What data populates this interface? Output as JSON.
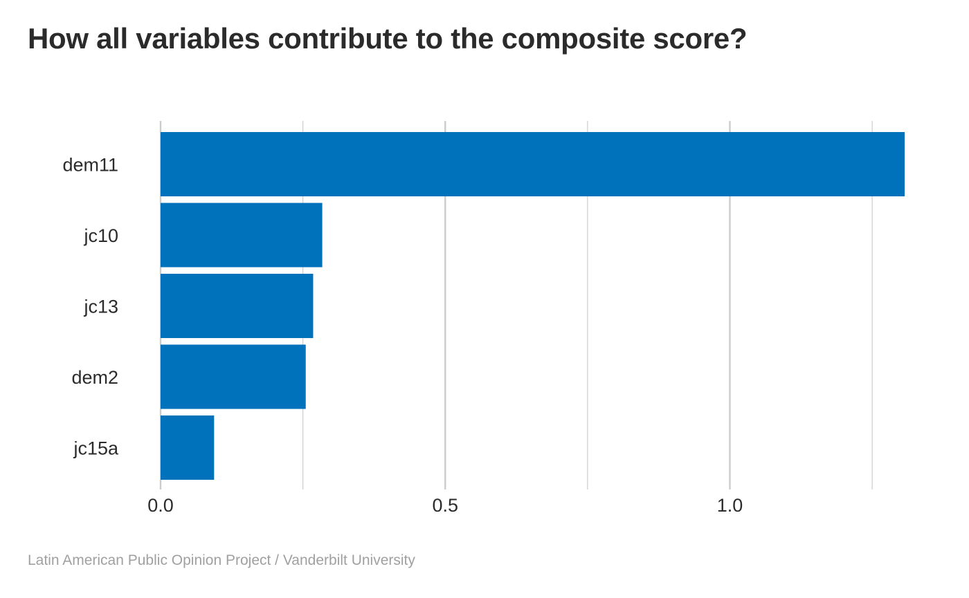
{
  "title": "How all variables contribute to the composite score?",
  "caption": "Latin American Public Opinion Project / Vanderbilt University",
  "colors": {
    "bar": "#0072bc",
    "grid": "#cccccc",
    "text": "#2b2b2b",
    "caption": "#a0a0a0"
  },
  "chart_data": {
    "type": "bar",
    "orientation": "horizontal",
    "title": "How all variables contribute to the composite score?",
    "xlabel": "",
    "ylabel": "",
    "categories": [
      "dem11",
      "jc10",
      "jc13",
      "dem2",
      "jc15a"
    ],
    "values": [
      1.307,
      0.284,
      0.268,
      0.255,
      0.094
    ],
    "xlim": [
      0,
      1.307
    ],
    "major_ticks": [
      0.0,
      0.5,
      1.0
    ],
    "major_tick_labels": [
      "0.0",
      "0.5",
      "1.0"
    ],
    "minor_ticks": [
      0.25,
      0.75,
      1.25
    ],
    "grid": true,
    "legend": "none"
  }
}
